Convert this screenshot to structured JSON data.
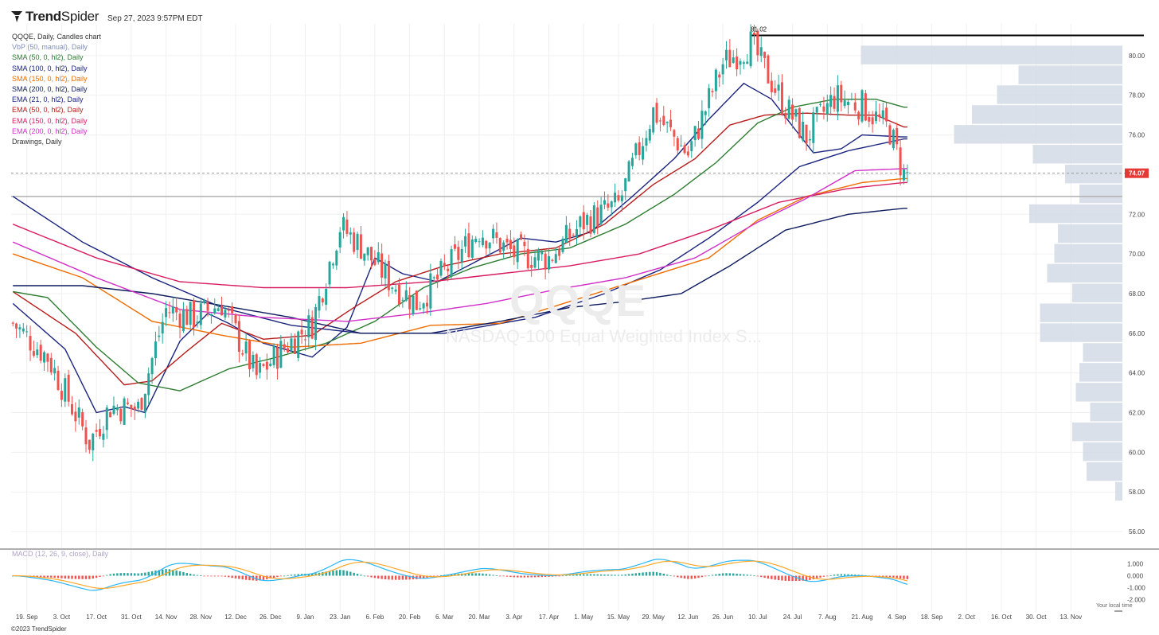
{
  "brand": {
    "name_bold": "Trend",
    "name_rest": "Spider"
  },
  "timestamp": "Sep 27, 2023 9:57PM EDT",
  "watermark": {
    "symbol": "QQQE",
    "name": "NASDAQ-100 Equal Weighted Index S..."
  },
  "legend": [
    {
      "text": "QQQE, Daily, Candles chart",
      "color": "#333333"
    },
    {
      "text": "VbP (50, manual), Daily",
      "color": "#7f8fb8"
    },
    {
      "text": "SMA (50, 0, hl2), Daily",
      "color": "#2e7d32"
    },
    {
      "text": "SMA (100, 0, hl2), Daily",
      "color": "#1a237e"
    },
    {
      "text": "SMA (150, 0, hl2), Daily",
      "color": "#ef6c00"
    },
    {
      "text": "SMA (200, 0, hl2), Daily",
      "color": "#0d1b5e"
    },
    {
      "text": "EMA (21, 0, hl2), Daily",
      "color": "#1a237e"
    },
    {
      "text": "EMA (50, 0, hl2), Daily",
      "color": "#b71c1c"
    },
    {
      "text": "EMA (150, 0, hl2), Daily",
      "color": "#d81b60"
    },
    {
      "text": "EMA (200, 0, hl2), Daily",
      "color": "#d12fc8"
    },
    {
      "text": "Drawings, Daily",
      "color": "#333333"
    }
  ],
  "macd_label": "MACD (12, 26, 9, close), Daily",
  "copyright": "©2023 TrendSpider",
  "local_time_note": "Your local time",
  "colors": {
    "up": "#26a69a",
    "down": "#ef5350",
    "grid": "#f0f0f0",
    "axis": "#444444",
    "vbp": "#d3dae6",
    "hline": "#b0b0b0",
    "resistance": "#000000",
    "last_price_bg": "#e53935",
    "macd_line": "#29b6f6",
    "signal_line": "#ffa726",
    "hist_up": "#26a69a",
    "hist_down": "#ef5350"
  },
  "chart_data": {
    "type": "candlestick",
    "symbol": "QQQE",
    "interval": "Daily",
    "y_ticks": [
      56,
      58,
      60,
      62,
      64,
      66,
      68,
      70,
      72,
      74,
      76,
      78,
      80
    ],
    "y_tick_labels": [
      "56.00",
      "58.00",
      "60.00",
      "62.00",
      "64.00",
      "66.00",
      "68.00",
      "70.00",
      "72.00",
      "74.00",
      "76.00",
      "78.00",
      "80.00"
    ],
    "ylim": [
      55.2,
      81.6
    ],
    "x_tick_labels": [
      "19. Sep",
      "3. Oct",
      "17. Oct",
      "31. Oct",
      "14. Nov",
      "28. Nov",
      "12. Dec",
      "26. Dec",
      "9. Jan",
      "23. Jan",
      "6. Feb",
      "20. Feb",
      "6. Mar",
      "20. Mar",
      "3. Apr",
      "17. Apr",
      "1. May",
      "15. May",
      "29. May",
      "12. Jun",
      "26. Jun",
      "10. Jul",
      "24. Jul",
      "7. Aug",
      "21. Aug",
      "4. Sep",
      "18. Sep",
      "2. Oct",
      "16. Oct",
      "30. Oct",
      "13. Nov"
    ],
    "last_price": 74.07,
    "last_price_label": "74.07",
    "resistance_level": 81.02,
    "resistance_label": "81.02",
    "support_level": 72.9,
    "closes_anchor": [
      [
        0,
        66.5
      ],
      [
        10,
        64.8
      ],
      [
        22,
        60.5
      ],
      [
        28,
        62.3
      ],
      [
        36,
        62.2
      ],
      [
        44,
        67.2
      ],
      [
        52,
        66.8
      ],
      [
        60,
        67.5
      ],
      [
        70,
        63.8
      ],
      [
        78,
        65.3
      ],
      [
        86,
        66.5
      ],
      [
        94,
        71.4
      ],
      [
        100,
        70.4
      ],
      [
        108,
        68.7
      ],
      [
        116,
        67.5
      ],
      [
        124,
        69.1
      ],
      [
        134,
        71.2
      ],
      [
        144,
        70.0
      ],
      [
        154,
        69.8
      ],
      [
        164,
        71.6
      ],
      [
        174,
        72.5
      ],
      [
        184,
        77.2
      ],
      [
        194,
        75.0
      ],
      [
        204,
        79.6
      ],
      [
        212,
        80.6
      ],
      [
        222,
        77.4
      ],
      [
        228,
        75.9
      ],
      [
        236,
        77.9
      ],
      [
        244,
        77.5
      ],
      [
        252,
        76.2
      ],
      [
        256,
        74.0
      ]
    ],
    "series": [
      {
        "name": "EMA (21, 0, hl2)",
        "values_anchor": [
          [
            0,
            67.5
          ],
          [
            15,
            65.2
          ],
          [
            24,
            62.0
          ],
          [
            32,
            62.3
          ],
          [
            38,
            62.0
          ],
          [
            48,
            65.6
          ],
          [
            56,
            67.0
          ],
          [
            62,
            66.5
          ],
          [
            72,
            65.5
          ],
          [
            86,
            64.8
          ],
          [
            96,
            66.3
          ],
          [
            104,
            69.8
          ],
          [
            112,
            69.0
          ],
          [
            122,
            68.6
          ],
          [
            134,
            69.7
          ],
          [
            146,
            70.8
          ],
          [
            156,
            70.6
          ],
          [
            166,
            71.1
          ],
          [
            178,
            72.9
          ],
          [
            190,
            74.8
          ],
          [
            200,
            76.8
          ],
          [
            210,
            78.6
          ],
          [
            218,
            77.8
          ],
          [
            230,
            75.1
          ],
          [
            238,
            75.3
          ],
          [
            244,
            76.0
          ],
          [
            256,
            75.9
          ]
        ]
      },
      {
        "name": "EMA (50, 0, hl2)",
        "values_anchor": [
          [
            0,
            68.1
          ],
          [
            18,
            66.0
          ],
          [
            32,
            63.4
          ],
          [
            40,
            63.6
          ],
          [
            50,
            65.1
          ],
          [
            60,
            66.5
          ],
          [
            72,
            65.7
          ],
          [
            86,
            65.9
          ],
          [
            98,
            67.3
          ],
          [
            110,
            68.6
          ],
          [
            124,
            69.4
          ],
          [
            140,
            70.0
          ],
          [
            156,
            70.3
          ],
          [
            170,
            71.5
          ],
          [
            184,
            73.5
          ],
          [
            196,
            74.8
          ],
          [
            206,
            76.5
          ],
          [
            216,
            77.0
          ],
          [
            228,
            77.1
          ],
          [
            240,
            77.0
          ],
          [
            248,
            77.0
          ],
          [
            256,
            76.4
          ]
        ]
      },
      {
        "name": "SMA (50, 0, hl2)",
        "values_anchor": [
          [
            0,
            68.1
          ],
          [
            10,
            67.8
          ],
          [
            24,
            65.3
          ],
          [
            36,
            63.5
          ],
          [
            48,
            63.1
          ],
          [
            62,
            64.2
          ],
          [
            76,
            64.8
          ],
          [
            90,
            65.5
          ],
          [
            104,
            66.6
          ],
          [
            118,
            68.3
          ],
          [
            132,
            69.3
          ],
          [
            146,
            70.0
          ],
          [
            160,
            70.3
          ],
          [
            176,
            71.5
          ],
          [
            190,
            73.0
          ],
          [
            202,
            74.6
          ],
          [
            214,
            76.6
          ],
          [
            224,
            77.4
          ],
          [
            236,
            77.8
          ],
          [
            248,
            77.8
          ],
          [
            256,
            77.4
          ]
        ]
      },
      {
        "name": "SMA (100, 0, hl2)",
        "values_anchor": [
          [
            0,
            72.9
          ],
          [
            20,
            70.6
          ],
          [
            40,
            68.8
          ],
          [
            60,
            67.3
          ],
          [
            80,
            66.4
          ],
          [
            100,
            66.0
          ],
          [
            124,
            66.0
          ],
          [
            150,
            66.8
          ],
          [
            170,
            68.0
          ],
          [
            186,
            69.2
          ],
          [
            200,
            70.8
          ],
          [
            214,
            72.6
          ],
          [
            226,
            74.4
          ],
          [
            240,
            75.2
          ],
          [
            256,
            75.8
          ]
        ]
      },
      {
        "name": "SMA (150, 0, hl2)",
        "values_anchor": [
          [
            0,
            70.0
          ],
          [
            20,
            68.8
          ],
          [
            40,
            66.6
          ],
          [
            60,
            65.9
          ],
          [
            80,
            65.3
          ],
          [
            100,
            65.5
          ],
          [
            120,
            66.4
          ],
          [
            140,
            66.5
          ],
          [
            160,
            67.6
          ],
          [
            180,
            68.7
          ],
          [
            200,
            69.8
          ],
          [
            214,
            71.7
          ],
          [
            228,
            72.9
          ],
          [
            244,
            73.6
          ],
          [
            256,
            73.8
          ]
        ]
      },
      {
        "name": "SMA (200, 0, hl2)",
        "values_anchor": [
          [
            0,
            68.4
          ],
          [
            20,
            68.4
          ],
          [
            40,
            68.0
          ],
          [
            60,
            67.4
          ],
          [
            80,
            66.8
          ],
          [
            100,
            66.0
          ],
          [
            120,
            66.0
          ],
          [
            140,
            66.6
          ],
          [
            160,
            67.3
          ],
          [
            176,
            67.6
          ],
          [
            192,
            68.0
          ],
          [
            206,
            69.4
          ],
          [
            222,
            71.2
          ],
          [
            240,
            72.0
          ],
          [
            256,
            72.3
          ]
        ]
      },
      {
        "name": "EMA (150, 0, hl2)",
        "values_anchor": [
          [
            0,
            71.5
          ],
          [
            24,
            69.8
          ],
          [
            48,
            68.6
          ],
          [
            72,
            68.3
          ],
          [
            96,
            68.3
          ],
          [
            120,
            68.6
          ],
          [
            140,
            69.0
          ],
          [
            160,
            69.4
          ],
          [
            180,
            70.0
          ],
          [
            200,
            71.2
          ],
          [
            220,
            72.6
          ],
          [
            240,
            73.3
          ],
          [
            256,
            73.6
          ]
        ]
      },
      {
        "name": "EMA (200, 0, hl2)",
        "values_anchor": [
          [
            0,
            70.6
          ],
          [
            24,
            68.8
          ],
          [
            48,
            67.2
          ],
          [
            72,
            66.8
          ],
          [
            96,
            66.6
          ],
          [
            116,
            67.0
          ],
          [
            136,
            67.5
          ],
          [
            156,
            68.2
          ],
          [
            176,
            68.8
          ],
          [
            196,
            69.8
          ],
          [
            214,
            71.6
          ],
          [
            228,
            72.8
          ],
          [
            242,
            74.2
          ],
          [
            256,
            74.3
          ]
        ]
      }
    ],
    "vbp_levels": [
      {
        "price": 80.0,
        "volume": 0.73
      },
      {
        "price": 79.0,
        "volume": 0.29
      },
      {
        "price": 78.0,
        "volume": 0.35
      },
      {
        "price": 77.0,
        "volume": 0.42
      },
      {
        "price": 76.0,
        "volume": 0.47
      },
      {
        "price": 75.0,
        "volume": 0.25
      },
      {
        "price": 74.0,
        "volume": 0.16
      },
      {
        "price": 73.0,
        "volume": 0.12
      },
      {
        "price": 72.0,
        "volume": 0.26
      },
      {
        "price": 71.0,
        "volume": 0.18
      },
      {
        "price": 70.0,
        "volume": 0.19
      },
      {
        "price": 69.0,
        "volume": 0.21
      },
      {
        "price": 68.0,
        "volume": 0.14
      },
      {
        "price": 67.0,
        "volume": 0.23
      },
      {
        "price": 66.0,
        "volume": 0.23
      },
      {
        "price": 65.0,
        "volume": 0.11
      },
      {
        "price": 64.0,
        "volume": 0.12
      },
      {
        "price": 63.0,
        "volume": 0.13
      },
      {
        "price": 62.0,
        "volume": 0.09
      },
      {
        "price": 61.0,
        "volume": 0.14
      },
      {
        "price": 60.0,
        "volume": 0.11
      },
      {
        "price": 59.0,
        "volume": 0.1
      },
      {
        "price": 58.0,
        "volume": 0.02
      }
    ],
    "macd": {
      "y_ticks": [
        -2,
        -1,
        0,
        1
      ],
      "y_tick_labels": [
        "-2.000",
        "-1.000",
        "0.000",
        "1.000"
      ],
      "ylim": [
        -2.3,
        1.7
      ]
    }
  }
}
